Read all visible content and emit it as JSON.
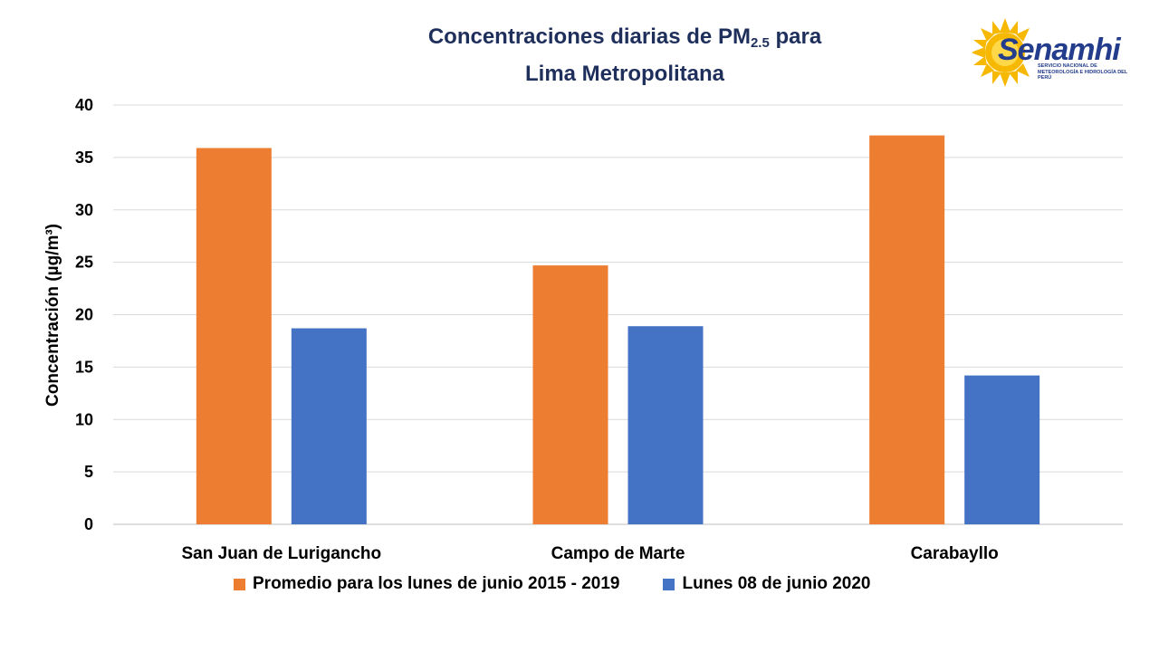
{
  "title_main": "Concentraciones diarias de PM",
  "title_sub": "2.5",
  "title_after": " para",
  "title_line2": "Lima Metropolitana",
  "logo": {
    "name": "Senamhi",
    "tagline": "SERVICIO NACIONAL DE METEOROLOGÍA E HIDROLOGÍA DEL PERÚ"
  },
  "colors": {
    "series1": "#ed7d31",
    "series2": "#4472c4",
    "title": "#1f2f5c",
    "grid": "#d9d9d9"
  },
  "chart_data": {
    "type": "bar",
    "title": "Concentraciones diarias de PM2.5 para Lima Metropolitana",
    "xlabel": "",
    "ylabel": "Concentración (µg/m³)",
    "ylim": [
      0,
      40
    ],
    "yticks": [
      0,
      5,
      10,
      15,
      20,
      25,
      30,
      35,
      40
    ],
    "grid": true,
    "legend_position": "bottom",
    "categories": [
      "San Juan de Lurigancho",
      "Campo de Marte",
      "Carabayllo"
    ],
    "series": [
      {
        "name": "Promedio para los lunes de junio 2015 - 2019",
        "values": [
          35.9,
          24.7,
          37.1
        ]
      },
      {
        "name": "Lunes 08 de junio 2020",
        "values": [
          18.7,
          18.9,
          14.2
        ]
      }
    ]
  }
}
